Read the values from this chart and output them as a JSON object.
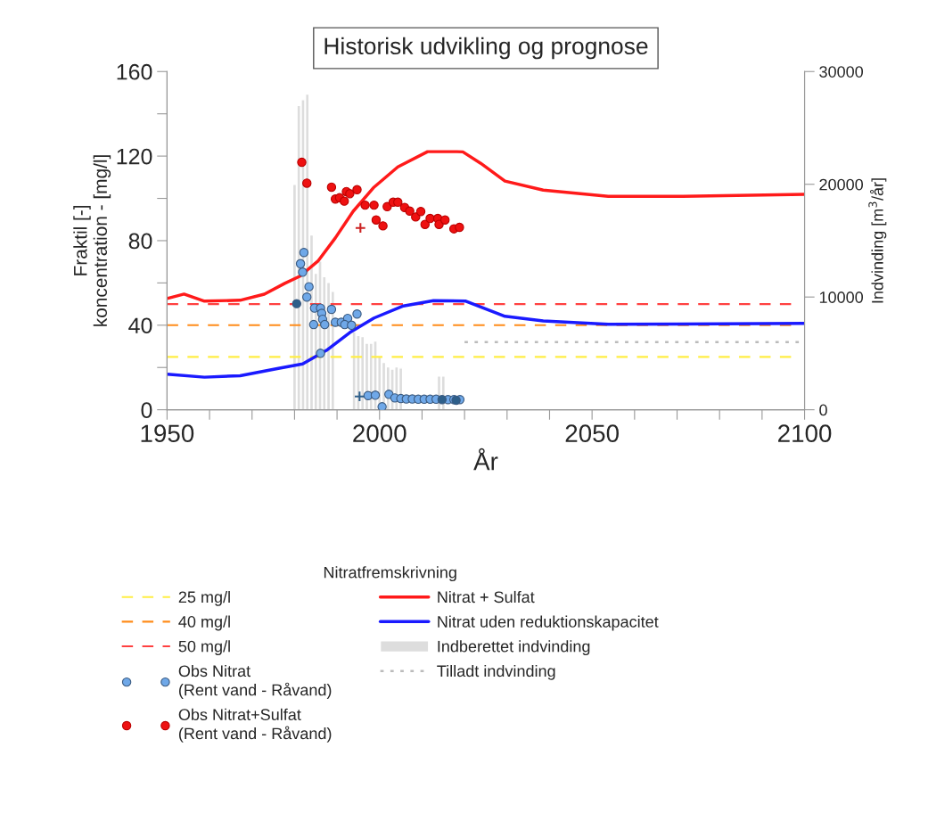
{
  "chart_data": {
    "type": "line",
    "title": "Historisk udvikling og prognose",
    "xlabel": "År",
    "ylabel": "Fraktil [-]\nkoncentration - [mg/l]",
    "y2label": "Indvinding [m$^{3}$/år]",
    "legend_title": "Nitratfremskrivning",
    "legend": "bottom",
    "grid": false,
    "xlim": [
      1950,
      2100
    ],
    "xticks": [
      1950,
      {
        "value": 1960,
        "label": null
      },
      {
        "value": 1970,
        "label": null
      },
      {
        "value": 1980,
        "label": null
      },
      {
        "value": 1990,
        "label": null
      },
      2000,
      {
        "value": 2010,
        "label": null
      },
      {
        "value": 2020,
        "label": null
      },
      {
        "value": 2030,
        "label": null
      },
      {
        "value": 2040,
        "label": null
      },
      2050,
      {
        "value": 2060,
        "label": null
      },
      {
        "value": 2070,
        "label": null
      },
      {
        "value": 2080,
        "label": null
      },
      {
        "value": 2090,
        "label": null
      },
      2100
    ],
    "ylim": [
      0,
      160
    ],
    "yticks": [
      0,
      {
        "value": 20,
        "label": null
      },
      40,
      {
        "value": 60,
        "label": null
      },
      80,
      {
        "value": 100,
        "label": null
      },
      120,
      {
        "value": 140,
        "label": null
      },
      160
    ],
    "y2lim": [
      0,
      30000
    ],
    "y2ticks": [
      0,
      10000,
      20000,
      30000
    ],
    "ref_lines": [
      {
        "axis": "y",
        "value": 25,
        "label": "25 mg/l",
        "color": "#ffee44",
        "line_style": "dashed"
      },
      {
        "axis": "y",
        "value": 40,
        "label": "40 mg/l",
        "color": "#ff8c1a",
        "line_style": "dashed"
      },
      {
        "axis": "y",
        "value": 50,
        "label": "50 mg/l",
        "color": "#ff4040",
        "line_style": "dashed"
      }
    ],
    "series": [
      {
        "type": "bar",
        "name": "Indberettet indvinding",
        "color": "#dddddd",
        "axis": "y2",
        "x": [
          1980,
          1981,
          1982,
          1983,
          1984,
          1985,
          1986,
          1987,
          1988,
          1989,
          1994,
          1995,
          1996,
          1997,
          1998,
          1999,
          2000,
          2001,
          2002,
          2003,
          2004,
          2005,
          2014,
          2015
        ],
        "values": [
          20000,
          27000,
          27500,
          28000,
          15500,
          12100,
          13200,
          11800,
          11300,
          10500,
          6900,
          6600,
          6500,
          5900,
          5900,
          6100,
          4700,
          4200,
          3800,
          3600,
          3800,
          3700,
          3000,
          3000
        ]
      },
      {
        "name": "Tilladt indvinding",
        "color": "#bbbbbb",
        "axis": "y2",
        "line_style": "dotted",
        "x": [
          2020,
          2100
        ],
        "values": [
          6000,
          6000
        ]
      },
      {
        "name": "Nitrat + Sulfat",
        "color": "#ff1a1a",
        "line_style": "solid",
        "x": [
          1950,
          1954,
          1958.8,
          1967.2,
          1972.9,
          1977.7,
          1981.3,
          1985.5,
          1989.6,
          1993.8,
          1998.7,
          2004.3,
          2011.3,
          2018.2,
          2019.6,
          2023.8,
          2029.5,
          2038.5,
          2053.8,
          2071.4,
          2100
        ],
        "values": [
          52.6,
          54.7,
          51.4,
          51.8,
          54.7,
          59.8,
          63.2,
          70.3,
          81.3,
          93.9,
          105.3,
          114.9,
          122.1,
          122.1,
          122,
          116.6,
          108.2,
          103.9,
          101,
          101,
          101.9
        ]
      },
      {
        "name": "Nitrat uden reduktionskapacitet",
        "color": "#1a1aff",
        "line_style": "solid",
        "x": [
          1950,
          1958.8,
          1967.2,
          1976.2,
          1981.9,
          1987.5,
          1993,
          1998.7,
          2005.6,
          2012.7,
          2020.3,
          2029.5,
          2038.5,
          2053.8,
          2100
        ],
        "values": [
          16.8,
          15.4,
          16.1,
          19.6,
          21.7,
          28.1,
          36.5,
          43.4,
          49.1,
          51.6,
          51.4,
          44.2,
          42,
          40.4,
          40.9
        ]
      },
      {
        "type": "scatter",
        "name": "Obs Nitrat\n(Rent vand - Råvand)",
        "color": "#6fa8e8",
        "marker": "circle",
        "x": [
          1982.2,
          1981.4,
          1981.9,
          1983.4,
          1982.9,
          1984.7,
          1986.1,
          1988.7,
          1986.4,
          1986.6,
          1984.5,
          1987.1,
          1989.6,
          1991,
          1992.5,
          1991.8,
          1993.4,
          1994.7,
          1986.1,
          1997.3,
          1999,
          2000.6,
          2002.2,
          2003.6,
          2005,
          2006.3,
          2007.7,
          2009.1,
          2010.5,
          2011.9,
          2013.3,
          2016.1,
          2017.5,
          2018.9
        ],
        "values": [
          74.4,
          69.1,
          65.1,
          58.2,
          53.3,
          48.1,
          48.1,
          47.5,
          45.6,
          42.8,
          40.3,
          40.3,
          41.4,
          41.4,
          43.2,
          40.3,
          40,
          45.3,
          26.7,
          6.7,
          6.9,
          1.4,
          7.3,
          5.6,
          5.3,
          5.1,
          5.1,
          5,
          5,
          5,
          5,
          4.8,
          4.8,
          4.8
        ]
      },
      {
        "type": "scatter",
        "color": "#2e5f8a",
        "marker": "circle",
        "x": [
          1980.5,
          2014.7,
          2018
        ],
        "values": [
          50.2,
          4.8,
          4.5
        ]
      },
      {
        "type": "scatter",
        "color": "#2e5f8a",
        "marker": "cross",
        "x": [
          1995.3
        ],
        "values": [
          6.3
        ]
      },
      {
        "type": "scatter",
        "name": "Obs Nitrat+Sulfat\n(Rent vand - Råvand)",
        "color": "#ee1111",
        "marker": "circle",
        "x": [
          1981.7,
          1982.9,
          1988.7,
          1989.6,
          1990.6,
          1991.7,
          1992.2,
          1993,
          1994.7,
          1996.6,
          1998.7,
          1999.2,
          2000.8,
          2001.8,
          2003.2,
          2004.3,
          2005.9,
          2007.1,
          2008.5,
          2009.7,
          2010.7,
          2011.9,
          2013.7,
          2014,
          2015.4,
          2017.5,
          2018.8
        ],
        "values": [
          117.1,
          107.2,
          105.3,
          99.7,
          100.3,
          98.7,
          103.2,
          102.2,
          104.1,
          96.8,
          96.8,
          89.8,
          87,
          96.1,
          98.2,
          98.2,
          95.7,
          94,
          91.2,
          93.8,
          87.7,
          90.5,
          90.5,
          87.7,
          89.8,
          85.6,
          86.3
        ]
      },
      {
        "type": "scatter",
        "color": "#cc2222",
        "marker": "cross",
        "x": [
          1995.5
        ],
        "values": [
          86
        ]
      }
    ]
  }
}
